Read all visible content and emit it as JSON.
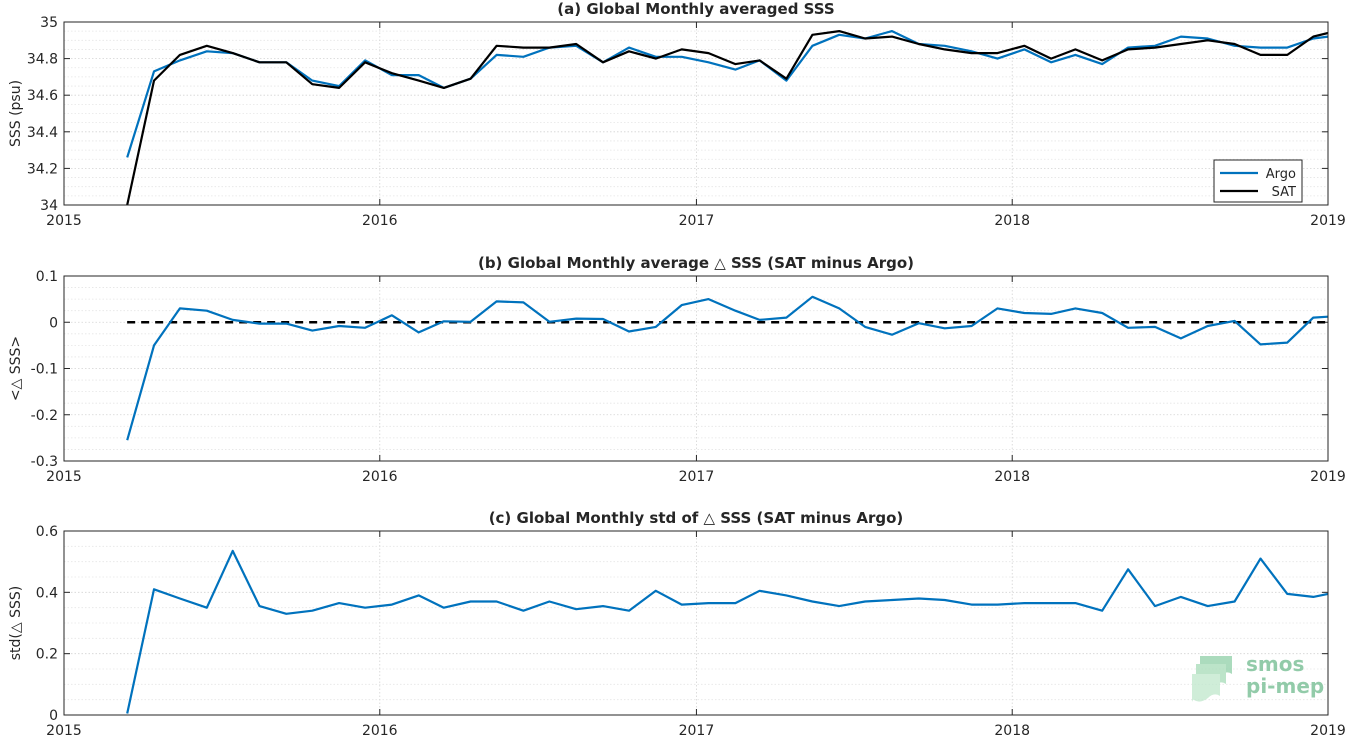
{
  "colors": {
    "argo": "#0072bd",
    "sat": "#000000",
    "zero_line": "#000000",
    "axis": "#262626",
    "grid": "#d4d4d4",
    "logo": "#7fc29b"
  },
  "chart_data": [
    {
      "type": "line",
      "title": "(a) Global Monthly averaged SSS",
      "xlabel": "",
      "ylabel": "SSS (psu)",
      "xlim": [
        "2015-01-01",
        "2019-01-01"
      ],
      "ylim": [
        34,
        35
      ],
      "xticks": [
        "2015",
        "2016",
        "2017",
        "2018",
        "2019"
      ],
      "yticks": [
        "34",
        "34.2",
        "34.4",
        "34.6",
        "34.8",
        "35"
      ],
      "grid": true,
      "legend": {
        "position": "bottom-right",
        "entries": [
          "Argo",
          "SAT"
        ]
      },
      "x": [
        "2015-03-15",
        "2015-04-15",
        "2015-05-15",
        "2015-06-15",
        "2015-07-15",
        "2015-08-15",
        "2015-09-15",
        "2015-10-15",
        "2015-11-15",
        "2015-12-15",
        "2016-01-15",
        "2016-02-15",
        "2016-03-15",
        "2016-04-15",
        "2016-05-15",
        "2016-06-15",
        "2016-07-15",
        "2016-08-15",
        "2016-09-15",
        "2016-10-15",
        "2016-11-15",
        "2016-12-15",
        "2017-01-15",
        "2017-02-15",
        "2017-03-15",
        "2017-04-15",
        "2017-05-15",
        "2017-06-15",
        "2017-07-15",
        "2017-08-15",
        "2017-09-15",
        "2017-10-15",
        "2017-11-15",
        "2017-12-15",
        "2018-01-15",
        "2018-02-15",
        "2018-03-15",
        "2018-04-15",
        "2018-05-15",
        "2018-06-15",
        "2018-07-15",
        "2018-08-15",
        "2018-09-15",
        "2018-10-15",
        "2018-11-15",
        "2018-12-15",
        "2019-01-01"
      ],
      "series": [
        {
          "name": "Argo",
          "color": "#0072bd",
          "values": [
            34.26,
            34.73,
            34.79,
            34.84,
            34.83,
            34.78,
            34.78,
            34.68,
            34.65,
            34.79,
            34.71,
            34.71,
            34.64,
            34.69,
            34.82,
            34.81,
            34.86,
            34.87,
            34.78,
            34.86,
            34.81,
            34.81,
            34.78,
            34.74,
            34.79,
            34.68,
            34.87,
            34.93,
            34.91,
            34.95,
            34.88,
            34.87,
            34.84,
            34.8,
            34.85,
            34.78,
            34.82,
            34.77,
            34.86,
            34.87,
            34.92,
            34.91,
            34.87,
            34.86,
            34.86,
            34.91,
            34.92
          ]
        },
        {
          "name": "SAT",
          "color": "#000000",
          "values": [
            34.0,
            34.68,
            34.82,
            34.87,
            34.83,
            34.78,
            34.78,
            34.66,
            34.64,
            34.78,
            34.72,
            34.68,
            34.64,
            34.69,
            34.87,
            34.86,
            34.86,
            34.88,
            34.78,
            34.84,
            34.8,
            34.85,
            34.83,
            34.77,
            34.79,
            34.69,
            34.93,
            34.95,
            34.91,
            34.92,
            34.88,
            34.85,
            34.83,
            34.83,
            34.87,
            34.8,
            34.85,
            34.79,
            34.85,
            34.86,
            34.88,
            34.9,
            34.88,
            34.82,
            34.82,
            34.92,
            34.94
          ]
        }
      ]
    },
    {
      "type": "line",
      "title": "(b) Global Monthly average △ SSS (SAT minus Argo)",
      "xlabel": "",
      "ylabel": "<△ SSS>",
      "xlim": [
        "2015-01-01",
        "2019-01-01"
      ],
      "ylim": [
        -0.3,
        0.1
      ],
      "xticks": [
        "2015",
        "2016",
        "2017",
        "2018",
        "2019"
      ],
      "yticks": [
        "-0.3",
        "-0.2",
        "-0.1",
        "0",
        "0.1"
      ],
      "grid": true,
      "reference_line": {
        "y": 0,
        "style": "dashed"
      },
      "x": [
        "2015-03-15",
        "2015-04-15",
        "2015-05-15",
        "2015-06-15",
        "2015-07-15",
        "2015-08-15",
        "2015-09-15",
        "2015-10-15",
        "2015-11-15",
        "2015-12-15",
        "2016-01-15",
        "2016-02-15",
        "2016-03-15",
        "2016-04-15",
        "2016-05-15",
        "2016-06-15",
        "2016-07-15",
        "2016-08-15",
        "2016-09-15",
        "2016-10-15",
        "2016-11-15",
        "2016-12-15",
        "2017-01-15",
        "2017-02-15",
        "2017-03-15",
        "2017-04-15",
        "2017-05-15",
        "2017-06-15",
        "2017-07-15",
        "2017-08-15",
        "2017-09-15",
        "2017-10-15",
        "2017-11-15",
        "2017-12-15",
        "2018-01-15",
        "2018-02-15",
        "2018-03-15",
        "2018-04-15",
        "2018-05-15",
        "2018-06-15",
        "2018-07-15",
        "2018-08-15",
        "2018-09-15",
        "2018-10-15",
        "2018-11-15",
        "2018-12-15",
        "2019-01-01"
      ],
      "series": [
        {
          "name": "",
          "color": "#0072bd",
          "values": [
            -0.255,
            -0.05,
            0.03,
            0.025,
            0.005,
            -0.003,
            -0.003,
            -0.018,
            -0.008,
            -0.012,
            0.015,
            -0.022,
            0.002,
            0.001,
            0.045,
            0.043,
            0.001,
            0.008,
            0.007,
            -0.02,
            -0.01,
            0.037,
            0.05,
            0.025,
            0.005,
            0.01,
            0.055,
            0.03,
            -0.01,
            -0.027,
            -0.002,
            -0.013,
            -0.008,
            0.03,
            0.02,
            0.018,
            0.03,
            0.02,
            -0.012,
            -0.01,
            -0.035,
            -0.008,
            0.003,
            -0.048,
            -0.044,
            0.01,
            0.012
          ]
        }
      ]
    },
    {
      "type": "line",
      "title": "(c) Global Monthly std of △ SSS (SAT minus Argo)",
      "xlabel": "",
      "ylabel": "std(△ SSS)",
      "xlim": [
        "2015-01-01",
        "2019-01-01"
      ],
      "ylim": [
        0,
        0.6
      ],
      "xticks": [
        "2015",
        "2016",
        "2017",
        "2018",
        "2019"
      ],
      "yticks": [
        "0",
        "0.2",
        "0.4",
        "0.6"
      ],
      "grid": true,
      "x": [
        "2015-03-15",
        "2015-04-15",
        "2015-05-15",
        "2015-06-15",
        "2015-07-15",
        "2015-08-15",
        "2015-09-15",
        "2015-10-15",
        "2015-11-15",
        "2015-12-15",
        "2016-01-15",
        "2016-02-15",
        "2016-03-15",
        "2016-04-15",
        "2016-05-15",
        "2016-06-15",
        "2016-07-15",
        "2016-08-15",
        "2016-09-15",
        "2016-10-15",
        "2016-11-15",
        "2016-12-15",
        "2017-01-15",
        "2017-02-15",
        "2017-03-15",
        "2017-04-15",
        "2017-05-15",
        "2017-06-15",
        "2017-07-15",
        "2017-08-15",
        "2017-09-15",
        "2017-10-15",
        "2017-11-15",
        "2017-12-15",
        "2018-01-15",
        "2018-02-15",
        "2018-03-15",
        "2018-04-15",
        "2018-05-15",
        "2018-06-15",
        "2018-07-15",
        "2018-08-15",
        "2018-09-15",
        "2018-10-15",
        "2018-11-15",
        "2018-12-15",
        "2019-01-01"
      ],
      "series": [
        {
          "name": "",
          "color": "#0072bd",
          "values": [
            0.005,
            0.41,
            0.38,
            0.35,
            0.535,
            0.355,
            0.33,
            0.34,
            0.365,
            0.35,
            0.36,
            0.39,
            0.35,
            0.37,
            0.37,
            0.34,
            0.37,
            0.345,
            0.355,
            0.34,
            0.405,
            0.36,
            0.365,
            0.365,
            0.405,
            0.39,
            0.37,
            0.355,
            0.37,
            0.375,
            0.38,
            0.375,
            0.36,
            0.36,
            0.365,
            0.365,
            0.365,
            0.34,
            0.475,
            0.355,
            0.385,
            0.355,
            0.37,
            0.51,
            0.395,
            0.385,
            0.395
          ]
        }
      ]
    }
  ],
  "logo": {
    "line1": "smos",
    "line2": "pi-mep"
  }
}
